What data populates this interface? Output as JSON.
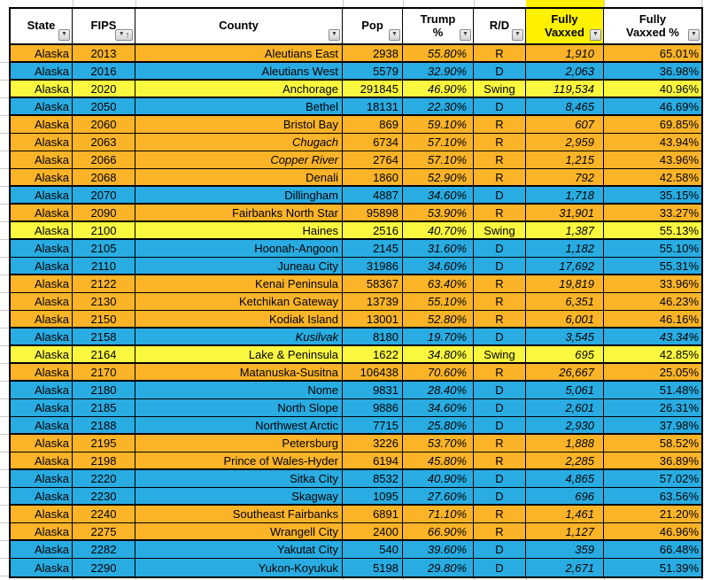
{
  "table": {
    "columns": [
      {
        "key": "state",
        "label": "State",
        "filter_icon": "filter-dropdown-icon"
      },
      {
        "key": "fips",
        "label": "FIPS",
        "filter_icon": "filter-sort-ascending-icon",
        "sorted": "asc"
      },
      {
        "key": "county",
        "label": "County",
        "filter_icon": "filter-dropdown-icon"
      },
      {
        "key": "pop",
        "label": "Pop",
        "filter_icon": "filter-dropdown-icon"
      },
      {
        "key": "trump_pct",
        "label": "Trump %",
        "filter_icon": "filter-dropdown-icon"
      },
      {
        "key": "rd",
        "label": "R/D",
        "filter_icon": "filter-dropdown-icon"
      },
      {
        "key": "vaxxed",
        "label": "Fully Vaxxed",
        "filter_icon": "filter-dropdown-icon",
        "highlight": true
      },
      {
        "key": "vaxxed_pct",
        "label": "Fully Vaxxed %",
        "filter_icon": "filter-dropdown-icon"
      }
    ],
    "rows": [
      {
        "state": "Alaska",
        "fips": "2013",
        "county": "Aleutians East",
        "pop": "2938",
        "trump_pct": "55.80%",
        "rd": "R",
        "vaxxed": "1,910",
        "vaxxed_pct": "65.01%"
      },
      {
        "state": "Alaska",
        "fips": "2016",
        "county": "Aleutians West",
        "pop": "5579",
        "trump_pct": "32.90%",
        "rd": "D",
        "vaxxed": "2,063",
        "vaxxed_pct": "36.98%"
      },
      {
        "state": "Alaska",
        "fips": "2020",
        "county": "Anchorage",
        "pop": "291845",
        "trump_pct": "46.90%",
        "rd": "Swing",
        "vaxxed": "119,534",
        "vaxxed_pct": "40.96%"
      },
      {
        "state": "Alaska",
        "fips": "2050",
        "county": "Bethel",
        "pop": "18131",
        "trump_pct": "22.30%",
        "rd": "D",
        "vaxxed": "8,465",
        "vaxxed_pct": "46.69%"
      },
      {
        "state": "Alaska",
        "fips": "2060",
        "county": "Bristol Bay",
        "pop": "869",
        "trump_pct": "59.10%",
        "rd": "R",
        "vaxxed": "607",
        "vaxxed_pct": "69.85%"
      },
      {
        "state": "Alaska",
        "fips": "2063",
        "county": "Chugach",
        "county_italic": true,
        "pop": "6734",
        "trump_pct": "57.10%",
        "rd": "R",
        "vaxxed": "2,959",
        "vaxxed_pct": "43.94%"
      },
      {
        "state": "Alaska",
        "fips": "2066",
        "county": "Copper River",
        "county_italic": true,
        "pop": "2764",
        "trump_pct": "57.10%",
        "rd": "R",
        "vaxxed": "1,215",
        "vaxxed_pct": "43.96%"
      },
      {
        "state": "Alaska",
        "fips": "2068",
        "county": "Denali",
        "pop": "1860",
        "trump_pct": "52.90%",
        "rd": "R",
        "vaxxed": "792",
        "vaxxed_pct": "42.58%"
      },
      {
        "state": "Alaska",
        "fips": "2070",
        "county": "Dillingham",
        "pop": "4887",
        "trump_pct": "34.60%",
        "rd": "D",
        "vaxxed": "1,718",
        "vaxxed_pct": "35.15%"
      },
      {
        "state": "Alaska",
        "fips": "2090",
        "county": "Fairbanks North Star",
        "pop": "95898",
        "trump_pct": "53.90%",
        "rd": "R",
        "vaxxed": "31,901",
        "vaxxed_pct": "33.27%"
      },
      {
        "state": "Alaska",
        "fips": "2100",
        "county": "Haines",
        "pop": "2516",
        "trump_pct": "40.70%",
        "rd": "Swing",
        "vaxxed": "1,387",
        "vaxxed_pct": "55.13%"
      },
      {
        "state": "Alaska",
        "fips": "2105",
        "county": "Hoonah-Angoon",
        "pop": "2145",
        "trump_pct": "31.60%",
        "rd": "D",
        "vaxxed": "1,182",
        "vaxxed_pct": "55.10%"
      },
      {
        "state": "Alaska",
        "fips": "2110",
        "county": "Juneau City",
        "pop": "31986",
        "trump_pct": "34.60%",
        "rd": "D",
        "vaxxed": "17,692",
        "vaxxed_pct": "55.31%"
      },
      {
        "state": "Alaska",
        "fips": "2122",
        "county": "Kenai Peninsula",
        "pop": "58367",
        "trump_pct": "63.40%",
        "rd": "R",
        "vaxxed": "19,819",
        "vaxxed_pct": "33.96%"
      },
      {
        "state": "Alaska",
        "fips": "2130",
        "county": "Ketchikan Gateway",
        "pop": "13739",
        "trump_pct": "55.10%",
        "rd": "R",
        "vaxxed": "6,351",
        "vaxxed_pct": "46.23%"
      },
      {
        "state": "Alaska",
        "fips": "2150",
        "county": "Kodiak Island",
        "pop": "13001",
        "trump_pct": "52.80%",
        "rd": "R",
        "vaxxed": "6,001",
        "vaxxed_pct": "46.16%"
      },
      {
        "state": "Alaska",
        "fips": "2158",
        "county": "Kusilvak",
        "county_italic": true,
        "pop": "8180",
        "trump_pct": "19.70%",
        "rd": "D",
        "vaxxed": "3,545",
        "vaxxed_pct": "43.34%",
        "vaxxed_pct_italic": true
      },
      {
        "state": "Alaska",
        "fips": "2164",
        "county": "Lake & Peninsula",
        "pop": "1622",
        "trump_pct": "34.80%",
        "rd": "Swing",
        "vaxxed": "695",
        "vaxxed_pct": "42.85%"
      },
      {
        "state": "Alaska",
        "fips": "2170",
        "county": "Matanuska-Susitna",
        "pop": "106438",
        "trump_pct": "70.60%",
        "rd": "R",
        "vaxxed": "26,667",
        "vaxxed_pct": "25.05%"
      },
      {
        "state": "Alaska",
        "fips": "2180",
        "county": "Nome",
        "pop": "9831",
        "trump_pct": "28.40%",
        "rd": "D",
        "vaxxed": "5,061",
        "vaxxed_pct": "51.48%"
      },
      {
        "state": "Alaska",
        "fips": "2185",
        "county": "North Slope",
        "pop": "9886",
        "trump_pct": "34.60%",
        "rd": "D",
        "vaxxed": "2,601",
        "vaxxed_pct": "26.31%"
      },
      {
        "state": "Alaska",
        "fips": "2188",
        "county": "Northwest Arctic",
        "pop": "7715",
        "trump_pct": "25.80%",
        "rd": "D",
        "vaxxed": "2,930",
        "vaxxed_pct": "37.98%"
      },
      {
        "state": "Alaska",
        "fips": "2195",
        "county": "Petersburg",
        "pop": "3226",
        "trump_pct": "53.70%",
        "rd": "R",
        "vaxxed": "1,888",
        "vaxxed_pct": "58.52%"
      },
      {
        "state": "Alaska",
        "fips": "2198",
        "county": "Prince of Wales-Hyder",
        "pop": "6194",
        "trump_pct": "45.80%",
        "rd": "R",
        "vaxxed": "2,285",
        "vaxxed_pct": "36.89%"
      },
      {
        "state": "Alaska",
        "fips": "2220",
        "county": "Sitka City",
        "pop": "8532",
        "trump_pct": "40.90%",
        "rd": "D",
        "vaxxed": "4,865",
        "vaxxed_pct": "57.02%"
      },
      {
        "state": "Alaska",
        "fips": "2230",
        "county": "Skagway",
        "pop": "1095",
        "trump_pct": "27.60%",
        "rd": "D",
        "vaxxed": "696",
        "vaxxed_pct": "63.56%"
      },
      {
        "state": "Alaska",
        "fips": "2240",
        "county": "Southeast Fairbanks",
        "pop": "6891",
        "trump_pct": "71.10%",
        "rd": "R",
        "vaxxed": "1,461",
        "vaxxed_pct": "21.20%"
      },
      {
        "state": "Alaska",
        "fips": "2275",
        "county": "Wrangell City",
        "pop": "2400",
        "trump_pct": "66.90%",
        "rd": "R",
        "vaxxed": "1,127",
        "vaxxed_pct": "46.96%"
      },
      {
        "state": "Alaska",
        "fips": "2282",
        "county": "Yakutat City",
        "pop": "540",
        "trump_pct": "39.60%",
        "rd": "D",
        "vaxxed": "359",
        "vaxxed_pct": "66.48%"
      },
      {
        "state": "Alaska",
        "fips": "2290",
        "county": "Yukon-Koyukuk",
        "pop": "5198",
        "trump_pct": "29.80%",
        "rd": "D",
        "vaxxed": "2,671",
        "vaxxed_pct": "51.39%"
      }
    ]
  },
  "colors": {
    "republican_row": "#FBB428",
    "democrat_row": "#29ACE2",
    "swing_row": "#FAF73F",
    "header_highlight": "#FFF100",
    "grid_border": "#000000"
  }
}
